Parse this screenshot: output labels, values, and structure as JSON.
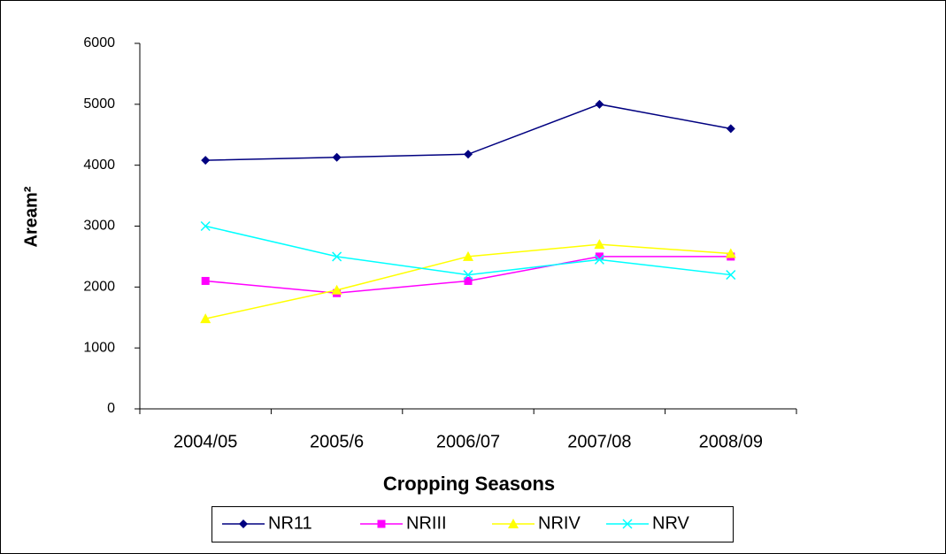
{
  "chart_data": {
    "type": "line",
    "x_label": "Cropping Seasons",
    "y_label": "Aream²",
    "categories": [
      "2004/05",
      "2005/6",
      "2006/07",
      "2007/08",
      "2008/09"
    ],
    "series": [
      {
        "name": "NR11",
        "color": "#000080",
        "marker": "diamond",
        "values": [
          4080,
          4130,
          4180,
          5000,
          4600
        ]
      },
      {
        "name": "NRIII",
        "color": "#ff00ff",
        "marker": "square",
        "values": [
          2100,
          1900,
          2100,
          2500,
          2500
        ]
      },
      {
        "name": "NRIV",
        "color": "#ffff00",
        "marker": "triangle",
        "values": [
          1480,
          1950,
          2500,
          2700,
          2550
        ]
      },
      {
        "name": "NRV",
        "color": "#00ffff",
        "marker": "x",
        "values": [
          3000,
          2500,
          2200,
          2450,
          2200
        ]
      }
    ],
    "ylim": [
      0,
      6000
    ],
    "yticks": [
      0,
      1000,
      2000,
      3000,
      4000,
      5000,
      6000
    ],
    "grid": false,
    "legend": "bottom"
  }
}
